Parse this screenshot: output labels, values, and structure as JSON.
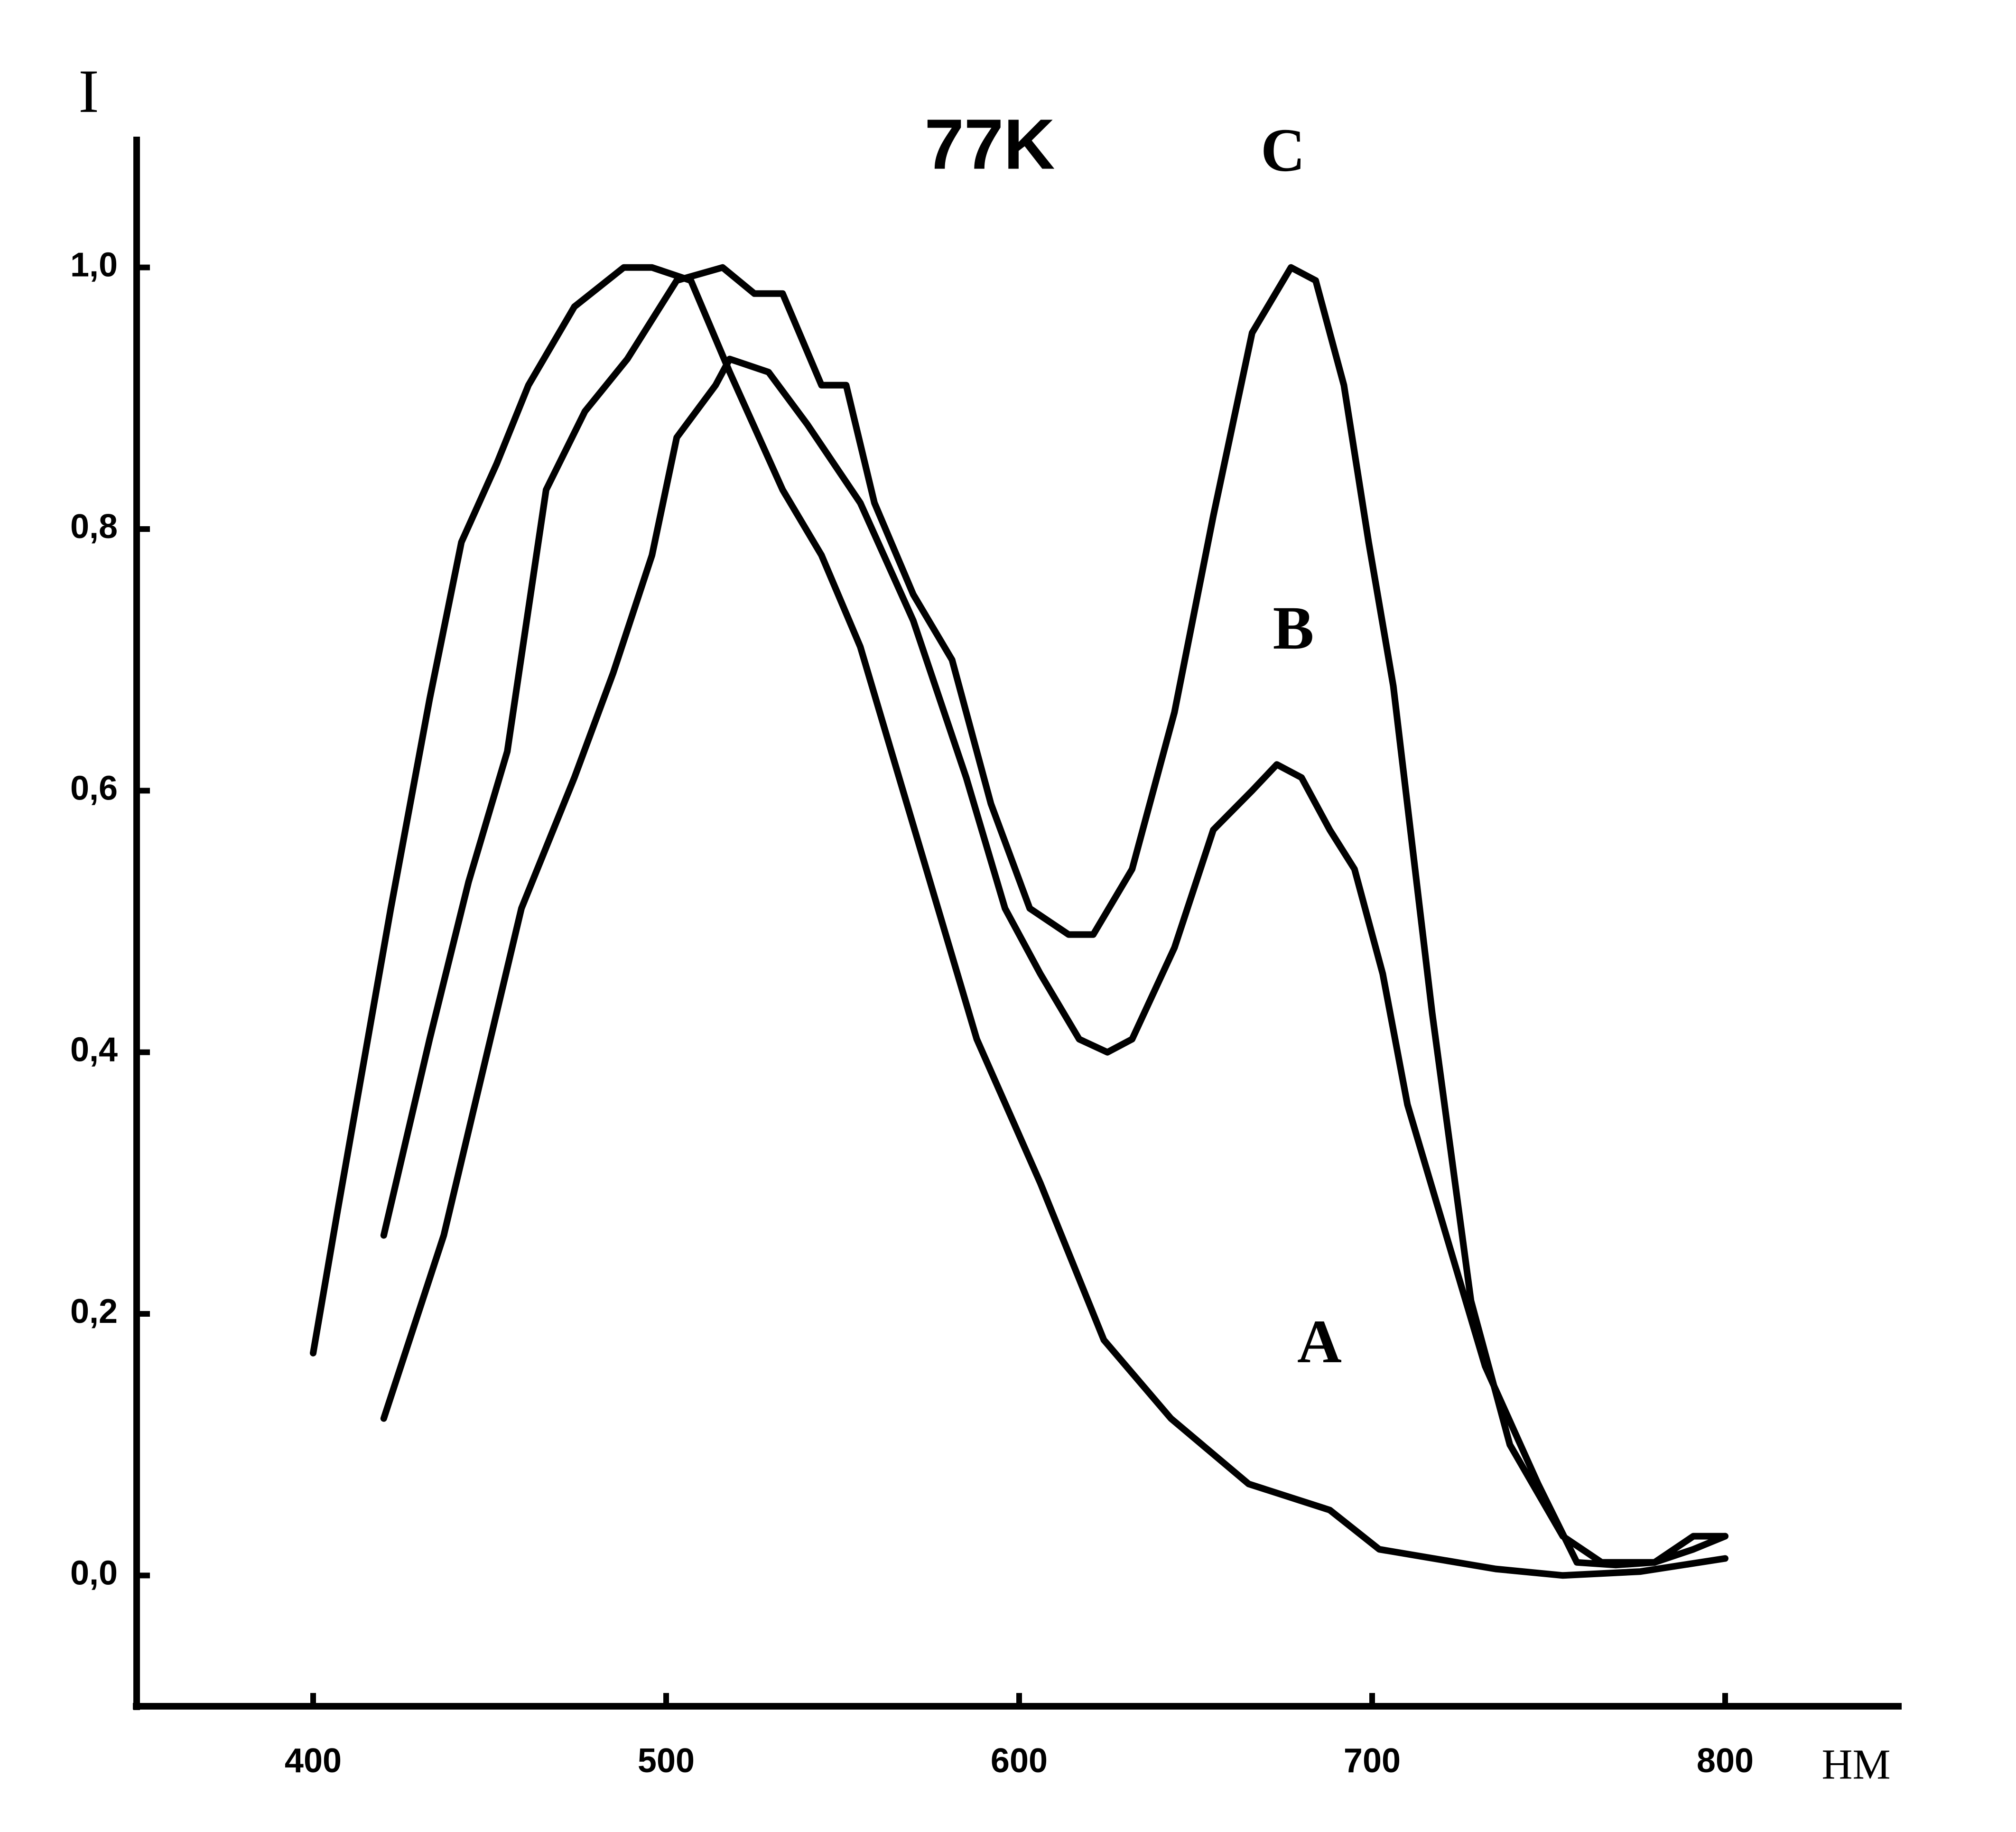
{
  "chart_data": {
    "type": "line",
    "title": "77K",
    "y_label": "I",
    "x_label": "HM",
    "xlim": [
      350,
      850
    ],
    "xticks": [
      400,
      500,
      600,
      700,
      800
    ],
    "ylim": [
      -0.1,
      1.1
    ],
    "yticks": [
      {
        "value": 0.0,
        "label": "0,0"
      },
      {
        "value": 0.2,
        "label": "0,2"
      },
      {
        "value": 0.4,
        "label": "0,4"
      },
      {
        "value": 0.6,
        "label": "0,6"
      },
      {
        "value": 0.8,
        "label": "0,8"
      },
      {
        "value": 1.0,
        "label": "1,0"
      }
    ],
    "series": [
      {
        "name": "A",
        "color": "#000000",
        "x": [
          400,
          407,
          422,
          433,
          442,
          452,
          461,
          474,
          488,
          496,
          507,
          518,
          533,
          544,
          555,
          566,
          577,
          588,
          606,
          624,
          643,
          665,
          688,
          702,
          735,
          754,
          776,
          800
        ],
        "values": [
          0.17,
          0.28,
          0.51,
          0.67,
          0.79,
          0.85,
          0.91,
          0.97,
          1.0,
          1.0,
          0.99,
          0.92,
          0.83,
          0.78,
          0.71,
          0.61,
          0.51,
          0.41,
          0.3,
          0.18,
          0.12,
          0.07,
          0.05,
          0.02,
          0.005,
          0.0,
          0.003,
          0.013
        ]
      },
      {
        "name": "B",
        "color": "#000000",
        "x": [
          420,
          437,
          459,
          474,
          485,
          496,
          503,
          514,
          518,
          529,
          540,
          555,
          570,
          585,
          596,
          606,
          617,
          625,
          632,
          644,
          655,
          666,
          673,
          680,
          688,
          695,
          703,
          710,
          721,
          732,
          747,
          758,
          769,
          780,
          791,
          800
        ],
        "values": [
          0.12,
          0.26,
          0.51,
          0.61,
          0.69,
          0.78,
          0.87,
          0.91,
          0.93,
          0.92,
          0.88,
          0.82,
          0.73,
          0.61,
          0.51,
          0.46,
          0.41,
          0.4,
          0.41,
          0.48,
          0.57,
          0.6,
          0.62,
          0.61,
          0.57,
          0.54,
          0.46,
          0.36,
          0.26,
          0.16,
          0.07,
          0.01,
          0.008,
          0.01,
          0.03,
          0.03
        ]
      },
      {
        "name": "C",
        "color": "#000000",
        "x": [
          420,
          433,
          444,
          455,
          466,
          477,
          489,
          503,
          516,
          525,
          533,
          544,
          551,
          559,
          570,
          581,
          592,
          603,
          614,
          621,
          632,
          644,
          655,
          666,
          677,
          684,
          692,
          699,
          706,
          717,
          728,
          739,
          754,
          765,
          780,
          791,
          800
        ],
        "values": [
          0.26,
          0.41,
          0.53,
          0.63,
          0.83,
          0.89,
          0.93,
          0.99,
          1.0,
          0.98,
          0.98,
          0.91,
          0.91,
          0.82,
          0.75,
          0.7,
          0.59,
          0.51,
          0.49,
          0.49,
          0.54,
          0.66,
          0.81,
          0.95,
          1.0,
          0.99,
          0.91,
          0.79,
          0.68,
          0.43,
          0.21,
          0.1,
          0.03,
          0.01,
          0.01,
          0.02,
          0.03
        ]
      }
    ]
  }
}
